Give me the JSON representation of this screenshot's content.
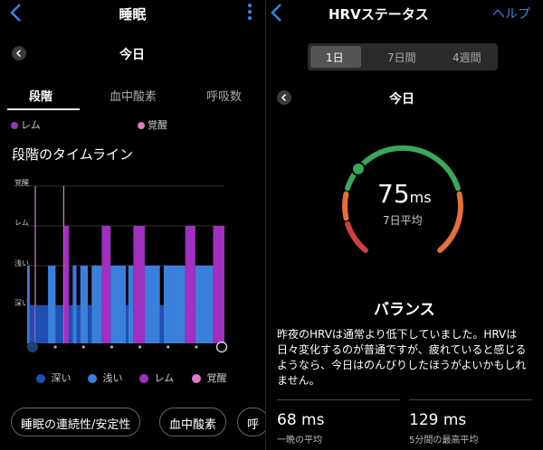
{
  "left": {
    "header_title": "睡眠",
    "date_label": "今日",
    "tabs": [
      "段階",
      "血中酸素",
      "呼吸数"
    ],
    "legend_partial": [
      "レム",
      "覚醒"
    ],
    "section_title": "段階のタイムライン",
    "stage_labels": [
      "覚醒",
      "レム",
      "浅い",
      "深い"
    ],
    "legend": [
      "深い",
      "浅い",
      "レム",
      "覚醒"
    ],
    "pills": [
      "睡眠の連続性/安定性",
      "血中酸素",
      "呼"
    ],
    "start_icon": "zzz-icon",
    "end_icon": "alarm-clock-icon"
  },
  "right": {
    "header_title": "HRVステータス",
    "help_label": "ヘルプ",
    "segments": [
      "1日",
      "7日間",
      "4週間"
    ],
    "selected_segment": "1日",
    "date_label": "今日",
    "hrv_value": "75",
    "hrv_unit": "ms",
    "avg_label": "7日平均",
    "status": "バランス",
    "description": "昨夜のHRVは通常より低下していました。HRVは日々変化するのが普通ですが、疲れていると感じるようなら、今日はのんびりしたほうがよいかもしれません。",
    "stats": [
      {
        "value": "68 ms",
        "label": "一晩の平均"
      },
      {
        "value": "129 ms",
        "label": "5分間の最高平均"
      }
    ]
  },
  "colors": {
    "accent": "#2f87e8",
    "deep": "#1f4fb5",
    "light": "#3a7fdc",
    "rem": "#a12fc0",
    "awake": "#e07ac9",
    "gauge_green": "#3aa85a",
    "gauge_orange": "#e2703a",
    "gauge_red": "#d0403f"
  },
  "chart_data": {
    "type": "timeline",
    "stages": [
      "覚醒",
      "レム",
      "浅い",
      "深い"
    ],
    "segments": [
      {
        "stage": "浅い",
        "duration": 2
      },
      {
        "stage": "深い",
        "duration": 4
      },
      {
        "stage": "覚醒",
        "duration": 0.5
      },
      {
        "stage": "深い",
        "duration": 10
      },
      {
        "stage": "浅い",
        "duration": 6
      },
      {
        "stage": "深い",
        "duration": 6
      },
      {
        "stage": "覚醒",
        "duration": 0.5
      },
      {
        "stage": "レム",
        "duration": 4
      },
      {
        "stage": "深い",
        "duration": 3
      },
      {
        "stage": "浅い",
        "duration": 3
      },
      {
        "stage": "深い",
        "duration": 3
      },
      {
        "stage": "浅い",
        "duration": 6
      },
      {
        "stage": "深い",
        "duration": 3
      },
      {
        "stage": "浅い",
        "duration": 8
      },
      {
        "stage": "レム",
        "duration": 7
      },
      {
        "stage": "浅い",
        "duration": 12
      },
      {
        "stage": "深い",
        "duration": 2
      },
      {
        "stage": "浅い",
        "duration": 4
      },
      {
        "stage": "レム",
        "duration": 9
      },
      {
        "stage": "浅い",
        "duration": 12
      },
      {
        "stage": "深い",
        "duration": 3
      },
      {
        "stage": "浅い",
        "duration": 17
      },
      {
        "stage": "レム",
        "duration": 8
      },
      {
        "stage": "浅い",
        "duration": 14
      },
      {
        "stage": "レム",
        "duration": 9
      }
    ]
  }
}
